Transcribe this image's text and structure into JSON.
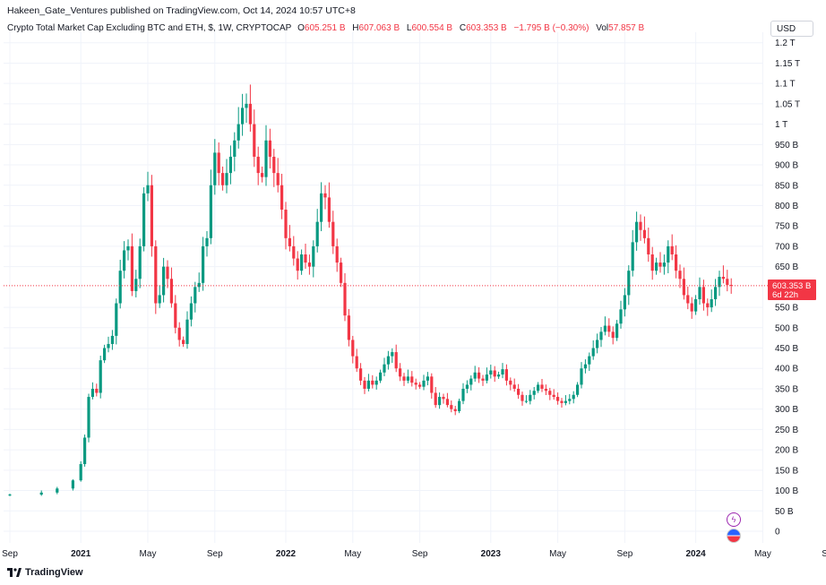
{
  "header": {
    "published": "Hakeen_Gate_Ventures published on TradingView.com, Oct 14, 2024 10:57 UTC+8"
  },
  "legend": {
    "symbol": "Crypto Total Market Cap Excluding BTC and ETH, $, 1W, CRYPTOCAP",
    "o_label": "O",
    "o_value": "605.251 B",
    "h_label": "H",
    "h_value": "607.063 B",
    "l_label": "L",
    "l_value": "600.554 B",
    "c_label": "C",
    "c_value": "603.353 B",
    "change": "−1.795 B (−0.30%)",
    "vol_label": "Vol",
    "vol_value": "57.857 B"
  },
  "currency_button": "USD",
  "price_tag": {
    "value": "603.353 B",
    "countdown": "6d 22h"
  },
  "footer": {
    "brand": "TradingView"
  },
  "colors": {
    "up": "#089981",
    "down": "#f23645",
    "grid": "#f0f3fa",
    "axis_text": "#131722",
    "last_line": "#f23645"
  },
  "chart_data": {
    "type": "candlestick",
    "title": "Crypto Total Market Cap Excluding BTC and ETH, $, 1W, CRYPTOCAP",
    "ylim": [
      0,
      1220
    ],
    "y_unit": "B USD",
    "y_ticks": [
      {
        "v": 1200,
        "label": "1.2 T"
      },
      {
        "v": 1150,
        "label": "1.15 T"
      },
      {
        "v": 1100,
        "label": "1.1 T"
      },
      {
        "v": 1050,
        "label": "1.05 T"
      },
      {
        "v": 1000,
        "label": "1 T"
      },
      {
        "v": 950,
        "label": "950 B"
      },
      {
        "v": 900,
        "label": "900 B"
      },
      {
        "v": 850,
        "label": "850 B"
      },
      {
        "v": 800,
        "label": "800 B"
      },
      {
        "v": 750,
        "label": "750 B"
      },
      {
        "v": 700,
        "label": "700 B"
      },
      {
        "v": 650,
        "label": "650 B"
      },
      {
        "v": 550,
        "label": "550 B"
      },
      {
        "v": 500,
        "label": "500 B"
      },
      {
        "v": 450,
        "label": "450 B"
      },
      {
        "v": 400,
        "label": "400 B"
      },
      {
        "v": 350,
        "label": "350 B"
      },
      {
        "v": 300,
        "label": "300 B"
      },
      {
        "v": 250,
        "label": "250 B"
      },
      {
        "v": 200,
        "label": "200 B"
      },
      {
        "v": 150,
        "label": "150 B"
      },
      {
        "v": 100,
        "label": "100 B"
      },
      {
        "v": 50,
        "label": "50 B"
      },
      {
        "v": 0,
        "label": "0"
      }
    ],
    "x_ticks": [
      {
        "label": "Sep",
        "t": 0,
        "bold": false
      },
      {
        "label": "2021",
        "t": 18,
        "bold": true
      },
      {
        "label": "May",
        "t": 35,
        "bold": false
      },
      {
        "label": "Sep",
        "t": 52,
        "bold": false
      },
      {
        "label": "2022",
        "t": 70,
        "bold": true
      },
      {
        "label": "May",
        "t": 87,
        "bold": false
      },
      {
        "label": "Sep",
        "t": 104,
        "bold": false
      },
      {
        "label": "2023",
        "t": 122,
        "bold": true
      },
      {
        "label": "May",
        "t": 139,
        "bold": false
      },
      {
        "label": "Sep",
        "t": 156,
        "bold": false
      },
      {
        "label": "2024",
        "t": 174,
        "bold": true
      },
      {
        "label": "May",
        "t": 191,
        "bold": false
      },
      {
        "label": "Sep",
        "t": 208,
        "bold": false
      }
    ],
    "last_close": 603.353,
    "anchors": [
      [
        0,
        90,
        0
      ],
      [
        8,
        95,
        0
      ],
      [
        12,
        105,
        0
      ],
      [
        16,
        125,
        0
      ],
      [
        18,
        165,
        0
      ],
      [
        19,
        230,
        0
      ],
      [
        20,
        330,
        0
      ],
      [
        21,
        350,
        0
      ],
      [
        22,
        340,
        0
      ],
      [
        23,
        420,
        0
      ],
      [
        24,
        450,
        0
      ],
      [
        25,
        460,
        1
      ],
      [
        26,
        480,
        0
      ],
      [
        27,
        560,
        0
      ],
      [
        28,
        640,
        0
      ],
      [
        29,
        690,
        0
      ],
      [
        30,
        700,
        0
      ],
      [
        31,
        590,
        1
      ],
      [
        32,
        620,
        0
      ],
      [
        33,
        700,
        0
      ],
      [
        34,
        830,
        0
      ],
      [
        35,
        850,
        0
      ],
      [
        36,
        700,
        1
      ],
      [
        37,
        560,
        1
      ],
      [
        38,
        580,
        0
      ],
      [
        39,
        650,
        0
      ],
      [
        40,
        620,
        1
      ],
      [
        41,
        560,
        1
      ],
      [
        42,
        500,
        1
      ],
      [
        43,
        470,
        1
      ],
      [
        44,
        460,
        1
      ],
      [
        45,
        520,
        0
      ],
      [
        46,
        560,
        0
      ],
      [
        47,
        600,
        0
      ],
      [
        48,
        610,
        0
      ],
      [
        49,
        700,
        0
      ],
      [
        50,
        720,
        0
      ],
      [
        51,
        850,
        0
      ],
      [
        52,
        930,
        0
      ],
      [
        53,
        880,
        1
      ],
      [
        54,
        850,
        1
      ],
      [
        55,
        880,
        0
      ],
      [
        56,
        920,
        0
      ],
      [
        57,
        960,
        0
      ],
      [
        58,
        1000,
        0
      ],
      [
        59,
        1040,
        0
      ],
      [
        60,
        1050,
        0
      ],
      [
        61,
        1000,
        1
      ],
      [
        62,
        920,
        1
      ],
      [
        63,
        880,
        1
      ],
      [
        64,
        870,
        0
      ],
      [
        65,
        960,
        0
      ],
      [
        66,
        920,
        1
      ],
      [
        67,
        880,
        1
      ],
      [
        68,
        850,
        1
      ],
      [
        69,
        790,
        1
      ],
      [
        70,
        720,
        1
      ],
      [
        71,
        700,
        1
      ],
      [
        72,
        670,
        1
      ],
      [
        73,
        640,
        1
      ],
      [
        74,
        680,
        0
      ],
      [
        75,
        660,
        1
      ],
      [
        76,
        650,
        1
      ],
      [
        77,
        700,
        0
      ],
      [
        78,
        760,
        0
      ],
      [
        79,
        830,
        0
      ],
      [
        80,
        820,
        1
      ],
      [
        81,
        760,
        1
      ],
      [
        82,
        700,
        1
      ],
      [
        83,
        660,
        1
      ],
      [
        84,
        610,
        1
      ],
      [
        85,
        530,
        1
      ],
      [
        86,
        470,
        1
      ],
      [
        87,
        430,
        1
      ],
      [
        88,
        400,
        1
      ],
      [
        89,
        370,
        1
      ],
      [
        90,
        350,
        1
      ],
      [
        91,
        370,
        0
      ],
      [
        92,
        360,
        1
      ],
      [
        93,
        370,
        0
      ],
      [
        94,
        390,
        0
      ],
      [
        95,
        410,
        0
      ],
      [
        96,
        430,
        0
      ],
      [
        97,
        440,
        0
      ],
      [
        98,
        400,
        1
      ],
      [
        99,
        380,
        1
      ],
      [
        100,
        370,
        1
      ],
      [
        101,
        380,
        0
      ],
      [
        102,
        365,
        1
      ],
      [
        103,
        360,
        1
      ],
      [
        104,
        355,
        1
      ],
      [
        105,
        370,
        0
      ],
      [
        106,
        380,
        0
      ],
      [
        107,
        340,
        1
      ],
      [
        108,
        310,
        1
      ],
      [
        109,
        330,
        0
      ],
      [
        110,
        325,
        1
      ],
      [
        111,
        310,
        1
      ],
      [
        112,
        300,
        1
      ],
      [
        113,
        295,
        1
      ],
      [
        114,
        320,
        0
      ],
      [
        115,
        350,
        0
      ],
      [
        116,
        360,
        0
      ],
      [
        117,
        375,
        0
      ],
      [
        118,
        390,
        0
      ],
      [
        119,
        375,
        1
      ],
      [
        120,
        370,
        1
      ],
      [
        121,
        385,
        0
      ],
      [
        122,
        395,
        0
      ],
      [
        123,
        380,
        1
      ],
      [
        124,
        385,
        0
      ],
      [
        125,
        398,
        0
      ],
      [
        126,
        370,
        1
      ],
      [
        127,
        360,
        1
      ],
      [
        128,
        350,
        1
      ],
      [
        129,
        335,
        1
      ],
      [
        130,
        320,
        1
      ],
      [
        131,
        320,
        0
      ],
      [
        132,
        335,
        0
      ],
      [
        133,
        345,
        0
      ],
      [
        134,
        360,
        0
      ],
      [
        135,
        350,
        1
      ],
      [
        136,
        345,
        1
      ],
      [
        137,
        335,
        1
      ],
      [
        138,
        330,
        1
      ],
      [
        139,
        320,
        1
      ],
      [
        140,
        315,
        1
      ],
      [
        141,
        320,
        0
      ],
      [
        142,
        325,
        0
      ],
      [
        143,
        335,
        0
      ],
      [
        144,
        360,
        0
      ],
      [
        145,
        400,
        0
      ],
      [
        146,
        410,
        0
      ],
      [
        147,
        430,
        0
      ],
      [
        148,
        450,
        0
      ],
      [
        149,
        470,
        0
      ],
      [
        150,
        490,
        0
      ],
      [
        151,
        505,
        0
      ],
      [
        152,
        490,
        1
      ],
      [
        153,
        475,
        1
      ],
      [
        154,
        510,
        0
      ],
      [
        155,
        545,
        0
      ],
      [
        156,
        580,
        0
      ],
      [
        157,
        640,
        0
      ],
      [
        158,
        710,
        0
      ],
      [
        159,
        760,
        0
      ],
      [
        160,
        740,
        1
      ],
      [
        161,
        720,
        1
      ],
      [
        162,
        680,
        1
      ],
      [
        163,
        640,
        1
      ],
      [
        164,
        660,
        0
      ],
      [
        165,
        650,
        1
      ],
      [
        166,
        660,
        0
      ],
      [
        167,
        700,
        0
      ],
      [
        168,
        680,
        1
      ],
      [
        169,
        640,
        1
      ],
      [
        170,
        620,
        1
      ],
      [
        171,
        580,
        1
      ],
      [
        172,
        560,
        1
      ],
      [
        173,
        540,
        1
      ],
      [
        174,
        570,
        0
      ],
      [
        175,
        600,
        0
      ],
      [
        176,
        560,
        1
      ],
      [
        177,
        550,
        1
      ],
      [
        178,
        570,
        0
      ],
      [
        179,
        600,
        0
      ],
      [
        180,
        625,
        0
      ],
      [
        181,
        620,
        1
      ],
      [
        182,
        605,
        1
      ],
      [
        183,
        603,
        1
      ]
    ]
  }
}
